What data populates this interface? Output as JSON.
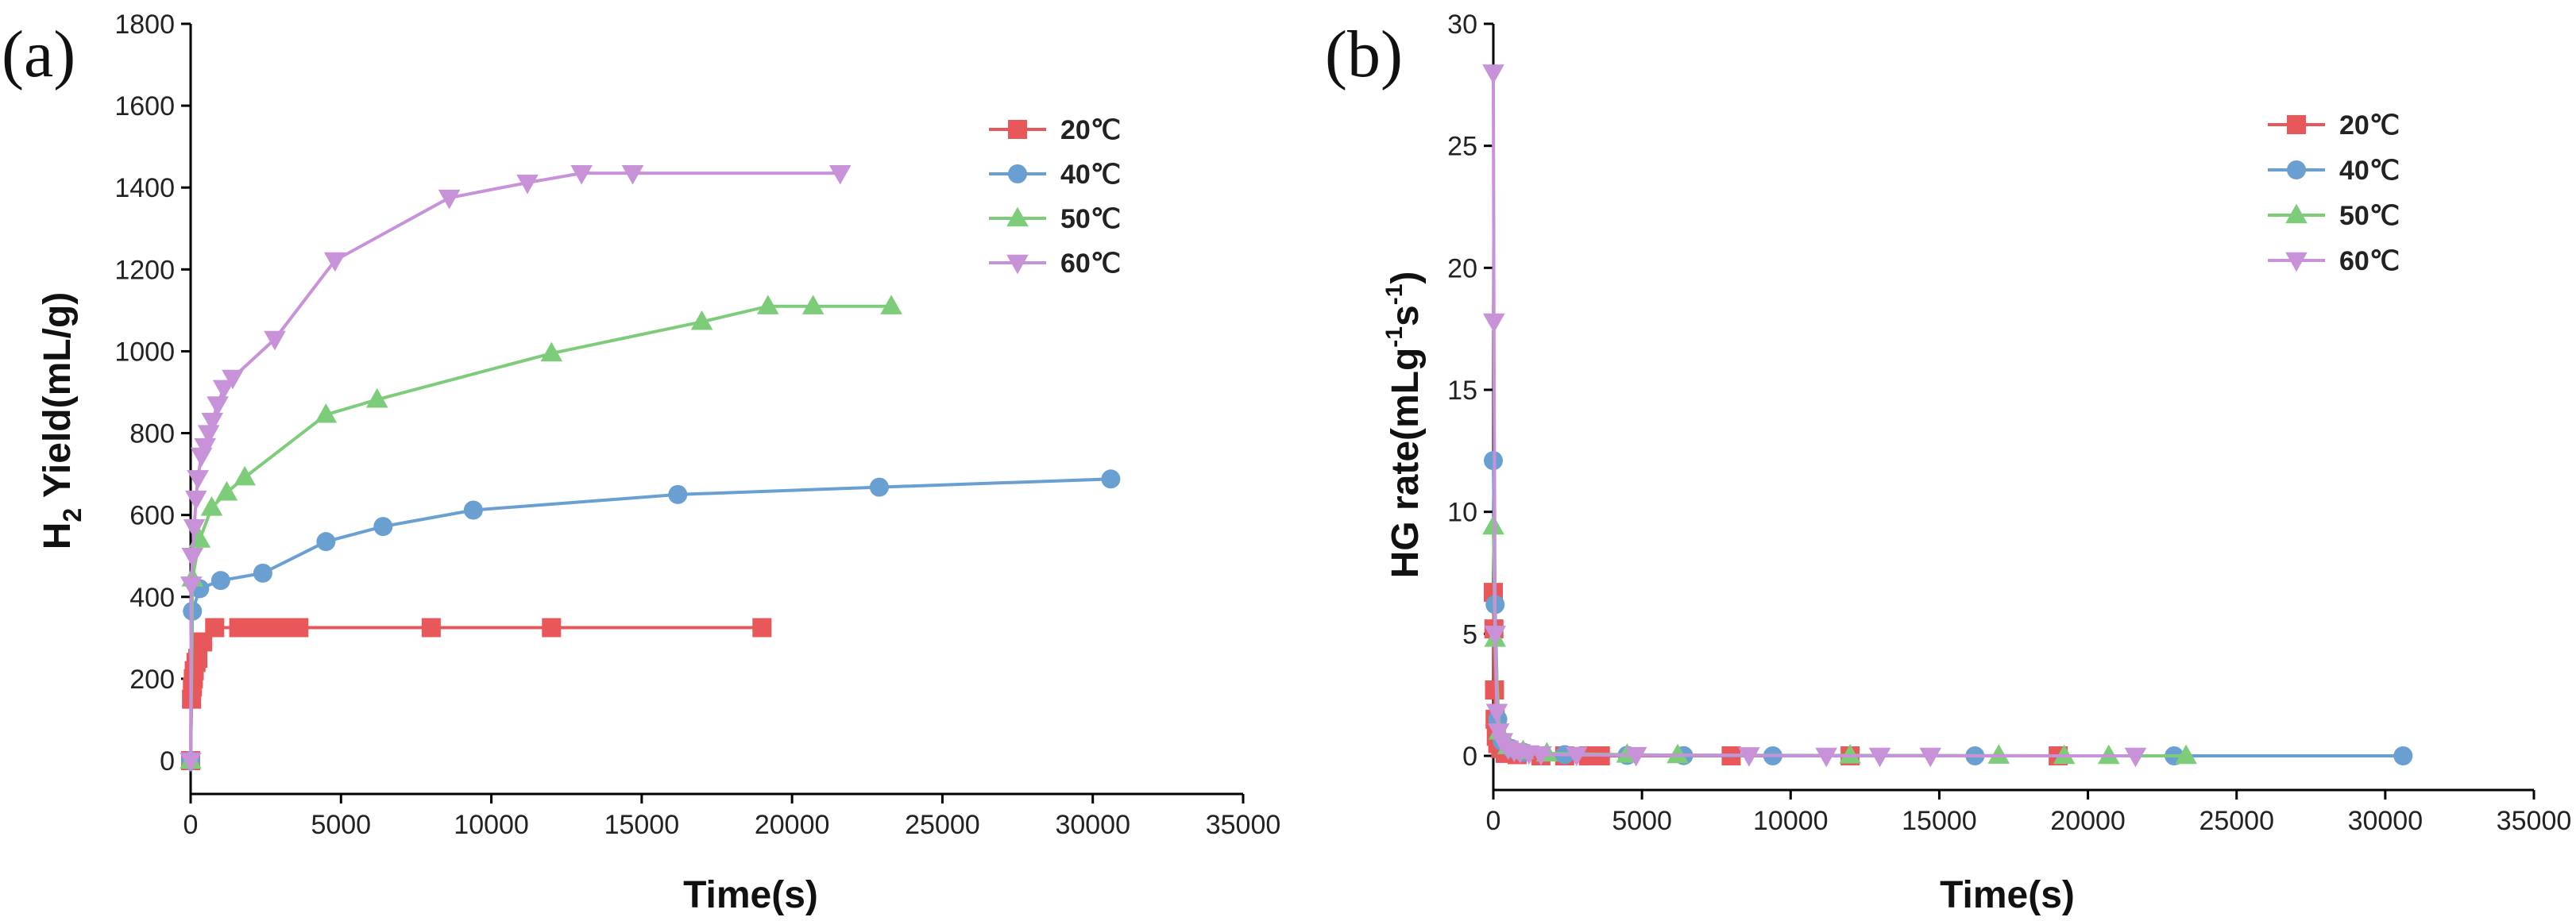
{
  "chart_data": [
    {
      "type": "line",
      "panel_label": "(a)",
      "title": "",
      "xlabel": "Time(s)",
      "ylabel_main": "H",
      "ylabel_sub": "2",
      "ylabel_rest": " Yield(mL/g)",
      "xlim": [
        0,
        35000
      ],
      "ylim": [
        0,
        1800
      ],
      "xticks": [
        0,
        5000,
        10000,
        15000,
        20000,
        25000,
        30000,
        35000
      ],
      "yticks": [
        0,
        200,
        400,
        600,
        800,
        1000,
        1200,
        1400,
        1600,
        1800
      ],
      "legend_position": "top-right",
      "series": [
        {
          "name": "20℃",
          "color": "#e8585a",
          "marker": "square",
          "x": [
            0,
            30,
            60,
            90,
            120,
            180,
            240,
            400,
            800,
            1600,
            2000,
            2400,
            2800,
            3200,
            3600,
            8000,
            12000,
            19000
          ],
          "y": [
            0,
            150,
            180,
            200,
            220,
            240,
            250,
            290,
            325,
            325,
            325,
            325,
            325,
            325,
            325,
            325,
            325,
            325
          ]
        },
        {
          "name": "40℃",
          "color": "#6a9fd2",
          "marker": "circle",
          "x": [
            0,
            60,
            300,
            1000,
            2400,
            4500,
            6400,
            9400,
            16200,
            22900,
            30600
          ],
          "y": [
            0,
            365,
            420,
            440,
            458,
            535,
            572,
            612,
            650,
            668,
            688
          ]
        },
        {
          "name": "50℃",
          "color": "#7ccc7a",
          "marker": "triangle-up",
          "x": [
            0,
            60,
            300,
            700,
            1200,
            1800,
            4500,
            6200,
            12000,
            17000,
            19200,
            20700,
            23300
          ],
          "y": [
            0,
            445,
            540,
            618,
            655,
            692,
            845,
            882,
            995,
            1072,
            1110,
            1110,
            1110
          ]
        },
        {
          "name": "60℃",
          "color": "#c792d8",
          "marker": "triangle-down",
          "x": [
            0,
            20,
            60,
            120,
            180,
            240,
            360,
            480,
            600,
            720,
            900,
            1100,
            1400,
            2800,
            4800,
            8600,
            11200,
            13000,
            14700,
            21600
          ],
          "y": [
            0,
            430,
            500,
            570,
            640,
            690,
            745,
            768,
            800,
            830,
            870,
            910,
            935,
            1030,
            1222,
            1375,
            1412,
            1435,
            1435,
            1435
          ]
        }
      ]
    },
    {
      "type": "line",
      "panel_label": "(b)",
      "title": "",
      "xlabel": "Time(s)",
      "ylabel_main": "HG rate(mLg",
      "ylabel_sup1": "-1",
      "ylabel_mid": "s",
      "ylabel_sup2": "-1",
      "ylabel_end": ")",
      "xlim": [
        0,
        35000
      ],
      "ylim": [
        0,
        30
      ],
      "xticks": [
        0,
        5000,
        10000,
        15000,
        20000,
        25000,
        30000,
        35000
      ],
      "yticks": [
        0,
        5,
        10,
        15,
        20,
        25,
        30
      ],
      "legend_position": "top-right",
      "series": [
        {
          "name": "20℃",
          "color": "#e8585a",
          "marker": "square",
          "x": [
            0,
            20,
            40,
            60,
            100,
            150,
            250,
            400,
            800,
            1600,
            2400,
            3200,
            3600,
            8000,
            12000,
            19000
          ],
          "y": [
            6.7,
            5.2,
            2.7,
            1.5,
            0.8,
            0.5,
            0.3,
            0.1,
            0.05,
            0,
            0,
            0,
            0,
            0,
            0,
            0
          ]
        },
        {
          "name": "40℃",
          "color": "#6a9fd2",
          "marker": "circle",
          "x": [
            0,
            60,
            150,
            300,
            600,
            1000,
            2400,
            4500,
            6400,
            9400,
            16200,
            22900,
            30600
          ],
          "y": [
            12.1,
            6.2,
            1.5,
            0.6,
            0.3,
            0.15,
            0.05,
            0.02,
            0.01,
            0,
            0,
            0,
            0
          ]
        },
        {
          "name": "50℃",
          "color": "#7ccc7a",
          "marker": "triangle-up",
          "x": [
            0,
            60,
            200,
            500,
            1000,
            1800,
            4500,
            6200,
            12000,
            17000,
            19200,
            20700,
            23300
          ],
          "y": [
            9.4,
            4.8,
            1.0,
            0.4,
            0.2,
            0.1,
            0.05,
            0.03,
            0.02,
            0.01,
            0,
            0,
            0
          ]
        },
        {
          "name": "60℃",
          "color": "#c792d8",
          "marker": "triangle-down",
          "x": [
            0,
            20,
            60,
            120,
            180,
            300,
            500,
            700,
            900,
            1200,
            1600,
            2800,
            4800,
            8600,
            11200,
            13000,
            14700,
            21600
          ],
          "y": [
            28.0,
            17.8,
            5.0,
            1.8,
            1.0,
            0.6,
            0.3,
            0.2,
            0.15,
            0.1,
            0.06,
            0.04,
            0.03,
            0.02,
            0,
            0,
            0,
            0
          ]
        }
      ]
    }
  ]
}
